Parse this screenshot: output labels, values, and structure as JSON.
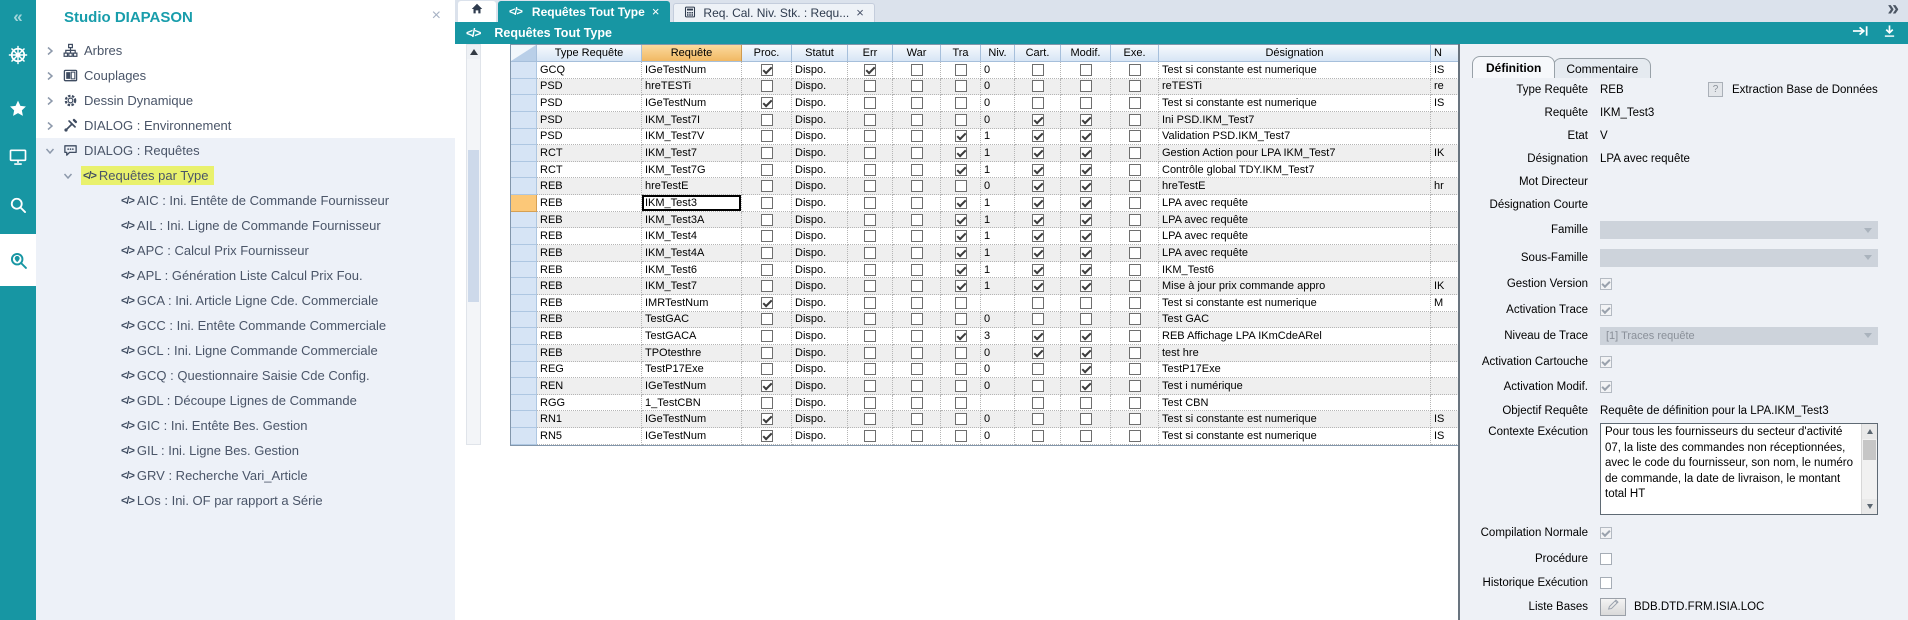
{
  "app": {
    "close_glyph": "×",
    "code_glyph": "</>",
    "collapse_glyph": "«",
    "overflow_glyph": "»"
  },
  "sidebar": {
    "title": "Studio DIAPASON",
    "tree": [
      {
        "level": 0,
        "icon": "sitemap-icon",
        "state": "collapsed",
        "label": "Arbres"
      },
      {
        "level": 0,
        "icon": "columns-icon",
        "state": "collapsed",
        "label": "Couplages"
      },
      {
        "level": 0,
        "icon": "gear-icon",
        "state": "collapsed",
        "label": "Dessin Dynamique"
      },
      {
        "level": 0,
        "icon": "tools-icon",
        "state": "collapsed",
        "label": "DIALOG : Environnement"
      },
      {
        "level": 0,
        "icon": "chat-icon",
        "state": "expanded",
        "label": "DIALOG : Requêtes"
      },
      {
        "level": 1,
        "icon": "code-icon",
        "state": "expanded",
        "label": "Requêtes par Type",
        "highlight": true
      },
      {
        "level": 2,
        "icon": "code-icon",
        "label": "AIC : Ini. Entête de Commande Fournisseur"
      },
      {
        "level": 2,
        "icon": "code-icon",
        "label": "AIL : Ini. Ligne de Commande Fournisseur"
      },
      {
        "level": 2,
        "icon": "code-icon",
        "label": "APC : Calcul Prix Fournisseur"
      },
      {
        "level": 2,
        "icon": "code-icon",
        "label": "APL : Génération Liste Calcul Prix Fou."
      },
      {
        "level": 2,
        "icon": "code-icon",
        "label": "GCA : Ini. Article Ligne Cde. Commerciale"
      },
      {
        "level": 2,
        "icon": "code-icon",
        "label": "GCC : Ini. Entête Commande Commerciale"
      },
      {
        "level": 2,
        "icon": "code-icon",
        "label": "GCL : Ini. Ligne Commande Commerciale"
      },
      {
        "level": 2,
        "icon": "code-icon",
        "label": "GCQ : Questionnaire Saisie Cde Config."
      },
      {
        "level": 2,
        "icon": "code-icon",
        "label": "GDL : Découpe Lignes de Commande"
      },
      {
        "level": 2,
        "icon": "code-icon",
        "label": "GIC : Ini. Entête Bes. Gestion"
      },
      {
        "level": 2,
        "icon": "code-icon",
        "label": "GIL : Ini. Ligne Bes. Gestion"
      },
      {
        "level": 2,
        "icon": "code-icon",
        "label": "GRV : Recherche Vari_Article"
      },
      {
        "level": 2,
        "icon": "code-icon",
        "label": "LOs : Ini. OF par rapport a Série"
      }
    ]
  },
  "tabs": {
    "active": {
      "label": "Requêtes Tout Type"
    },
    "secondary": {
      "label": "Req. Cal. Niv. Stk. : Requ..."
    }
  },
  "toolbar": {
    "title": "Requêtes Tout Type"
  },
  "grid": {
    "columns": [
      {
        "key": "type",
        "label": "Type Requête"
      },
      {
        "key": "requete",
        "label": "Requête"
      },
      {
        "key": "proc",
        "label": "Proc."
      },
      {
        "key": "statut",
        "label": "Statut"
      },
      {
        "key": "err",
        "label": "Err"
      },
      {
        "key": "war",
        "label": "War"
      },
      {
        "key": "tra",
        "label": "Tra"
      },
      {
        "key": "niv",
        "label": "Niv."
      },
      {
        "key": "cart",
        "label": "Cart."
      },
      {
        "key": "modif",
        "label": "Modif."
      },
      {
        "key": "exe",
        "label": "Exe."
      },
      {
        "key": "designation",
        "label": "Désignation"
      },
      {
        "key": "extra",
        "label": "N"
      }
    ],
    "rows": [
      {
        "type": "GCQ",
        "requete": "IGeTestNum",
        "proc": true,
        "statut": "Dispo.",
        "err": true,
        "war": false,
        "tra": false,
        "niv": "0",
        "cart": false,
        "modif": false,
        "exe": false,
        "designation": "Test si constante est numerique",
        "extra": "IS"
      },
      {
        "type": "PSD",
        "requete": "hreTESTi",
        "proc": false,
        "statut": "Dispo.",
        "err": false,
        "war": false,
        "tra": false,
        "niv": "0",
        "cart": false,
        "modif": false,
        "exe": false,
        "designation": "reTESTi",
        "extra": "re"
      },
      {
        "type": "PSD",
        "requete": "IGeTestNum",
        "proc": true,
        "statut": "Dispo.",
        "err": false,
        "war": false,
        "tra": false,
        "niv": "0",
        "cart": false,
        "modif": false,
        "exe": false,
        "designation": "Test si constante est numerique",
        "extra": "IS"
      },
      {
        "type": "PSD",
        "requete": "IKM_Test7I",
        "proc": false,
        "statut": "Dispo.",
        "err": false,
        "war": false,
        "tra": false,
        "niv": "0",
        "cart": true,
        "modif": true,
        "exe": false,
        "designation": "Ini PSD.IKM_Test7",
        "extra": ""
      },
      {
        "type": "PSD",
        "requete": "IKM_Test7V",
        "proc": false,
        "statut": "Dispo.",
        "err": false,
        "war": false,
        "tra": true,
        "niv": "1",
        "cart": true,
        "modif": true,
        "exe": false,
        "designation": "Validation PSD.IKM_Test7",
        "extra": ""
      },
      {
        "type": "RCT",
        "requete": "IKM_Test7",
        "proc": false,
        "statut": "Dispo.",
        "err": false,
        "war": false,
        "tra": true,
        "niv": "1",
        "cart": true,
        "modif": true,
        "exe": false,
        "designation": "Gestion Action pour LPA IKM_Test7",
        "extra": "IK"
      },
      {
        "type": "RCT",
        "requete": "IKM_Test7G",
        "proc": false,
        "statut": "Dispo.",
        "err": false,
        "war": false,
        "tra": true,
        "niv": "1",
        "cart": true,
        "modif": true,
        "exe": false,
        "designation": "Contrôle global TDY.IKM_Test7",
        "extra": ""
      },
      {
        "type": "REB",
        "requete": "hreTestE",
        "proc": false,
        "statut": "Dispo.",
        "err": false,
        "war": false,
        "tra": false,
        "niv": "0",
        "cart": true,
        "modif": true,
        "exe": false,
        "designation": "hreTestE",
        "extra": "hr"
      },
      {
        "type": "REB",
        "requete": "IKM_Test3",
        "proc": false,
        "statut": "Dispo.",
        "err": false,
        "war": false,
        "tra": true,
        "niv": "1",
        "cart": true,
        "modif": true,
        "exe": false,
        "designation": "LPA avec requête",
        "extra": "",
        "selected": true
      },
      {
        "type": "REB",
        "requete": "IKM_Test3A",
        "proc": false,
        "statut": "Dispo.",
        "err": false,
        "war": false,
        "tra": true,
        "niv": "1",
        "cart": true,
        "modif": true,
        "exe": false,
        "designation": "LPA avec requête",
        "extra": ""
      },
      {
        "type": "REB",
        "requete": "IKM_Test4",
        "proc": false,
        "statut": "Dispo.",
        "err": false,
        "war": false,
        "tra": true,
        "niv": "1",
        "cart": true,
        "modif": true,
        "exe": false,
        "designation": "LPA avec requête",
        "extra": ""
      },
      {
        "type": "REB",
        "requete": "IKM_Test4A",
        "proc": false,
        "statut": "Dispo.",
        "err": false,
        "war": false,
        "tra": true,
        "niv": "1",
        "cart": true,
        "modif": true,
        "exe": false,
        "designation": "LPA avec requête",
        "extra": ""
      },
      {
        "type": "REB",
        "requete": "IKM_Test6",
        "proc": false,
        "statut": "Dispo.",
        "err": false,
        "war": false,
        "tra": true,
        "niv": "1",
        "cart": true,
        "modif": true,
        "exe": false,
        "designation": "IKM_Test6",
        "extra": ""
      },
      {
        "type": "REB",
        "requete": "IKM_Test7",
        "proc": false,
        "statut": "Dispo.",
        "err": false,
        "war": false,
        "tra": true,
        "niv": "1",
        "cart": true,
        "modif": true,
        "exe": false,
        "designation": "Mise à jour prix commande appro",
        "extra": "IK"
      },
      {
        "type": "REB",
        "requete": "IMRTestNum",
        "proc": true,
        "statut": "Dispo.",
        "err": false,
        "war": false,
        "tra": false,
        "niv": "",
        "cart": false,
        "modif": false,
        "exe": false,
        "designation": "Test si constante est numerique",
        "extra": "M"
      },
      {
        "type": "REB",
        "requete": "TestGAC",
        "proc": false,
        "statut": "Dispo.",
        "err": false,
        "war": false,
        "tra": false,
        "niv": "0",
        "cart": false,
        "modif": false,
        "exe": false,
        "designation": "Test GAC",
        "extra": ""
      },
      {
        "type": "REB",
        "requete": "TestGACA",
        "proc": false,
        "statut": "Dispo.",
        "err": false,
        "war": false,
        "tra": true,
        "niv": "3",
        "cart": true,
        "modif": true,
        "exe": false,
        "designation": "REB Affichage LPA IKmCdeARel",
        "extra": ""
      },
      {
        "type": "REB",
        "requete": "TPOtesthre",
        "proc": false,
        "statut": "Dispo.",
        "err": false,
        "war": false,
        "tra": false,
        "niv": "0",
        "cart": true,
        "modif": true,
        "exe": false,
        "designation": "test hre",
        "extra": ""
      },
      {
        "type": "REG",
        "requete": "TestP17Exe",
        "proc": false,
        "statut": "Dispo.",
        "err": false,
        "war": false,
        "tra": false,
        "niv": "0",
        "cart": false,
        "modif": true,
        "exe": false,
        "designation": "TestP17Exe",
        "extra": ""
      },
      {
        "type": "REN",
        "requete": "IGeTestNum",
        "proc": true,
        "statut": "Dispo.",
        "err": false,
        "war": false,
        "tra": false,
        "niv": "0",
        "cart": false,
        "modif": true,
        "exe": false,
        "designation": "Test i numérique",
        "extra": ""
      },
      {
        "type": "RGG",
        "requete": "1_TestCBN",
        "proc": false,
        "statut": "Dispo.",
        "err": false,
        "war": false,
        "tra": false,
        "niv": "",
        "cart": false,
        "modif": false,
        "exe": false,
        "designation": "Test CBN",
        "extra": ""
      },
      {
        "type": "RN1",
        "requete": "IGeTestNum",
        "proc": true,
        "statut": "Dispo.",
        "err": false,
        "war": false,
        "tra": false,
        "niv": "0",
        "cart": false,
        "modif": false,
        "exe": false,
        "designation": "Test si constante est numerique",
        "extra": "IS"
      },
      {
        "type": "RN5",
        "requete": "IGeTestNum",
        "proc": true,
        "statut": "Dispo.",
        "err": false,
        "war": false,
        "tra": false,
        "niv": "0",
        "cart": false,
        "modif": false,
        "exe": false,
        "designation": "Test si constante est numerique",
        "extra": "IS"
      }
    ]
  },
  "panel": {
    "tabs": {
      "definition": "Définition",
      "commentaire": "Commentaire"
    },
    "fields": [
      {
        "label": "Type Requête",
        "type": "type-req",
        "value": "REB",
        "button": "?",
        "desc": "Extraction Base de Données"
      },
      {
        "label": "Requête",
        "type": "text",
        "value": "IKM_Test3"
      },
      {
        "label": "Etat",
        "type": "text",
        "value": "V"
      },
      {
        "label": "Désignation",
        "type": "text",
        "value": "LPA avec requête"
      },
      {
        "label": "Mot Directeur",
        "type": "text",
        "value": ""
      },
      {
        "label": "Désignation Courte",
        "type": "text",
        "value": ""
      },
      {
        "label": "Famille",
        "type": "dropdown",
        "value": ""
      },
      {
        "label": "Sous-Famille",
        "type": "dropdown",
        "value": ""
      },
      {
        "label": "Gestion Version",
        "type": "checkbox",
        "checked": true,
        "disabled": true
      },
      {
        "label": "Activation Trace",
        "type": "checkbox",
        "checked": true,
        "disabled": true
      },
      {
        "label": "Niveau de Trace",
        "type": "dropdown",
        "value": "[1] Traces requête"
      },
      {
        "label": "Activation Cartouche",
        "type": "checkbox",
        "checked": true,
        "disabled": true
      },
      {
        "label": "Activation Modif.",
        "type": "checkbox",
        "checked": true,
        "disabled": true
      },
      {
        "label": "Objectif Requête",
        "type": "text",
        "value": "Requête de définition pour la LPA.IKM_Test3"
      },
      {
        "label": "Contexte Exécution",
        "type": "textarea",
        "value": "Pour tous les fournisseurs du secteur d'activité 07, la liste des commandes non réceptionnées, avec le code du fournisseur, son nom, le numéro de commande, la date de livraison, le montant total HT"
      },
      {
        "label": "Compilation Normale",
        "type": "checkbox",
        "checked": true,
        "disabled": true
      },
      {
        "label": "Procédure",
        "type": "checkbox",
        "checked": false
      },
      {
        "label": "Historique Exécution",
        "type": "checkbox",
        "checked": false
      },
      {
        "label": "Liste Bases",
        "type": "icon-text",
        "icon": "pencil-icon",
        "value": "BDB.DTD.FRM.ISIA.LOC"
      }
    ]
  }
}
